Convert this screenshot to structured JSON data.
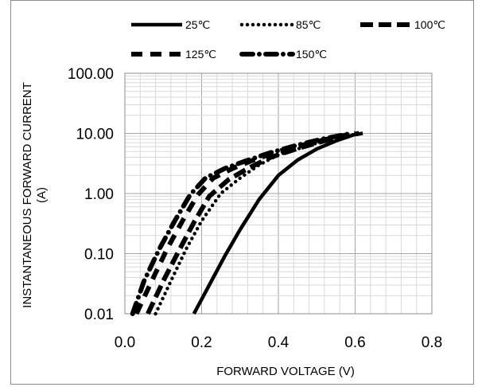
{
  "chart_data": {
    "type": "line",
    "xlabel": "FORWARD VOLTAGE (V)",
    "ylabel_line1": "INSTANTANEOUS FORWARD CURRENT",
    "ylabel_line2": "(A)",
    "x_scale": "linear",
    "y_scale": "log",
    "xlim": [
      0.0,
      0.8
    ],
    "ylim": [
      0.01,
      100
    ],
    "x_ticks": [
      "0.0",
      "0.2",
      "0.4",
      "0.6",
      "0.8"
    ],
    "y_ticks": [
      "0.01",
      "0.10",
      "1.00",
      "10.00",
      "100.00"
    ],
    "grid": "major and minor",
    "legend_position": "top",
    "series": [
      {
        "name": "25℃",
        "dash": "solid",
        "x": [
          0.18,
          0.22,
          0.26,
          0.3,
          0.35,
          0.4,
          0.45,
          0.5,
          0.55,
          0.6,
          0.62
        ],
        "y": [
          0.01,
          0.03,
          0.09,
          0.25,
          0.8,
          2.0,
          3.6,
          5.5,
          7.5,
          9.6,
          10.0
        ]
      },
      {
        "name": "85℃",
        "dash": "dotted",
        "x": [
          0.08,
          0.12,
          0.16,
          0.2,
          0.25,
          0.3,
          0.35,
          0.4,
          0.5,
          0.6,
          0.62
        ],
        "y": [
          0.01,
          0.035,
          0.12,
          0.35,
          1.0,
          1.8,
          3.0,
          4.4,
          6.9,
          9.6,
          10.0
        ]
      },
      {
        "name": "100℃",
        "dash": "long-dash",
        "x": [
          0.06,
          0.1,
          0.14,
          0.18,
          0.22,
          0.27,
          0.32,
          0.38,
          0.45,
          0.52,
          0.58,
          0.61
        ],
        "y": [
          0.01,
          0.035,
          0.11,
          0.33,
          0.9,
          1.7,
          2.6,
          4.0,
          5.6,
          7.5,
          9.3,
          10.0
        ]
      },
      {
        "name": "125℃",
        "dash": "dash",
        "x": [
          0.03,
          0.07,
          0.11,
          0.15,
          0.19,
          0.23,
          0.28,
          0.33,
          0.4,
          0.48,
          0.55,
          0.6
        ],
        "y": [
          0.01,
          0.035,
          0.12,
          0.35,
          0.95,
          1.8,
          2.6,
          3.5,
          5.0,
          6.8,
          8.7,
          10.0
        ]
      },
      {
        "name": "150℃",
        "dash": "dash-dot",
        "x": [
          0.02,
          0.05,
          0.09,
          0.13,
          0.17,
          0.21,
          0.26,
          0.31,
          0.38,
          0.45,
          0.52,
          0.59
        ],
        "y": [
          0.01,
          0.035,
          0.12,
          0.35,
          0.95,
          1.8,
          2.6,
          3.4,
          4.8,
          6.4,
          8.2,
          10.0
        ]
      }
    ]
  }
}
